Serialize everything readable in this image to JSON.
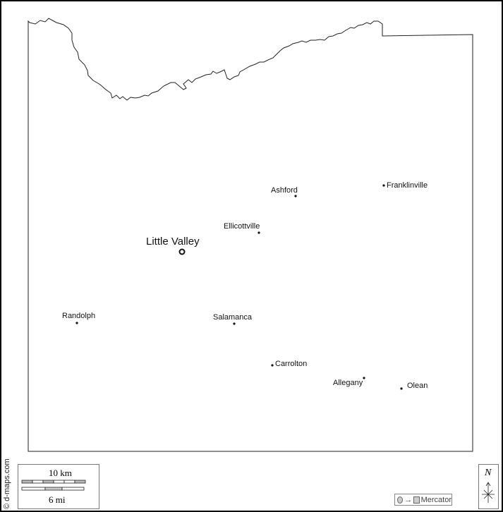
{
  "map": {
    "capital": {
      "name": "Little Valley",
      "symbol": "ring"
    },
    "cities": [
      {
        "name": "Ashford"
      },
      {
        "name": "Franklinville"
      },
      {
        "name": "Ellicottville"
      },
      {
        "name": "Randolph"
      },
      {
        "name": "Salamanca"
      },
      {
        "name": "Carrolton"
      },
      {
        "name": "Allegany"
      },
      {
        "name": "Olean"
      }
    ]
  },
  "scale": {
    "km_label": "10 km",
    "mi_label": "6 mi"
  },
  "projection": {
    "label": "Mercator"
  },
  "north": {
    "label": "N"
  },
  "credit": "© d-maps.com"
}
